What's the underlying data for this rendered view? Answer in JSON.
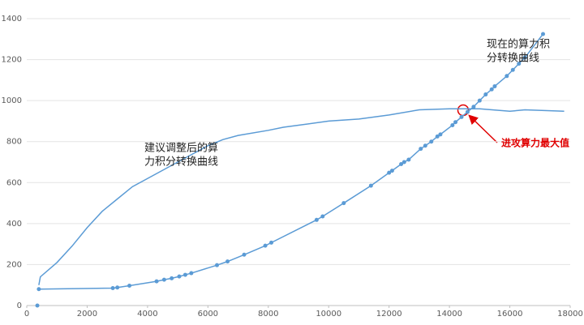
{
  "chart_data": {
    "type": "line",
    "xlim": [
      0,
      18000
    ],
    "xticks": [
      0,
      2000,
      4000,
      6000,
      8000,
      10000,
      12000,
      14000,
      16000,
      18000
    ],
    "ylim": [
      0,
      1400
    ],
    "yticks": [
      0,
      200,
      400,
      600,
      800,
      1000,
      1200,
      1400
    ],
    "grid": true,
    "series": [
      {
        "color": "#5b9bd5",
        "line": true,
        "markers": true,
        "x": [
          400,
          2850,
          3000,
          3400,
          4300,
          4550,
          4800,
          5050,
          5250,
          5450,
          6300,
          6650,
          7200,
          7900,
          8100,
          9600,
          9800,
          10500,
          11400,
          12000,
          12100,
          12400,
          12500,
          12650,
          13050,
          13200,
          13400,
          13600,
          13700,
          14100,
          14200,
          14400,
          14600,
          14800,
          15000,
          15200,
          15400,
          15500,
          15900,
          16100,
          16300,
          16500,
          17100
        ],
        "y": [
          80,
          85,
          88,
          97,
          118,
          126,
          133,
          142,
          150,
          158,
          197,
          215,
          248,
          292,
          307,
          418,
          435,
          500,
          585,
          648,
          658,
          690,
          700,
          712,
          765,
          780,
          800,
          825,
          835,
          880,
          895,
          920,
          945,
          970,
          1000,
          1030,
          1055,
          1070,
          1120,
          1150,
          1180,
          1210,
          1325
        ]
      },
      {
        "color": "#5b9bd5",
        "line": false,
        "markers": true,
        "x": [
          350
        ],
        "y": [
          0
        ]
      },
      {
        "color": "#5b9bd5",
        "line": true,
        "markers": false,
        "x": [
          400,
          450,
          1000,
          1500,
          2000,
          2500,
          3000,
          3500,
          4000,
          4500,
          5000,
          5500,
          6000,
          6500,
          7000,
          8000,
          8500,
          9000,
          10000,
          11000,
          12000,
          13000,
          14000,
          15000,
          16000,
          16500,
          17800
        ],
        "y": [
          100,
          140,
          210,
          290,
          380,
          460,
          520,
          580,
          620,
          660,
          700,
          740,
          780,
          810,
          830,
          855,
          870,
          880,
          900,
          910,
          930,
          955,
          960,
          960,
          948,
          955,
          948
        ]
      }
    ],
    "annotations": [
      {
        "lines": [
          "现在的算力积",
          "分转换曲线"
        ]
      },
      {
        "lines": [
          "建议调整后的算",
          "力积分转换曲线"
        ]
      },
      {
        "lines": [
          "进攻算力最大值"
        ]
      }
    ]
  }
}
